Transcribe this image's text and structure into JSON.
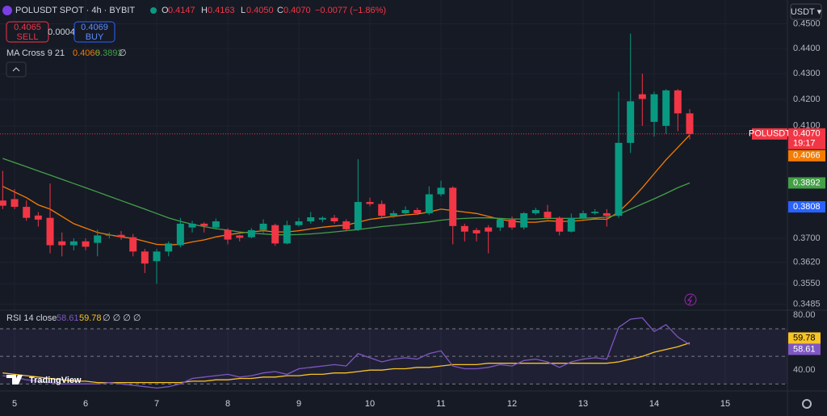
{
  "header": {
    "symbol": "POLUSDT SPOT · 4h · BYBIT",
    "o_label": "O",
    "o": "0.4147",
    "h_label": "H",
    "h": "0.4163",
    "l_label": "L",
    "l": "0.4050",
    "c_label": "C",
    "c": "0.4070",
    "change": "−0.0077 (−1.86%)"
  },
  "trade": {
    "sell_price": "0.4065",
    "sell": "SELL",
    "spread": "0.0004",
    "buy_price": "0.4069",
    "buy": "BUY"
  },
  "currency": "USDT ▾",
  "watermark": "TradingView",
  "chart_data": [
    {
      "type": "candlestick",
      "indicator": "MA Cross 9 21",
      "indicator_suffix": "∅",
      "log_scale": true,
      "grid": true,
      "up_color": "#089981",
      "down_color": "#f23645",
      "x": [
        4.833,
        5,
        5.167,
        5.333,
        5.5,
        5.667,
        5.833,
        6,
        6.167,
        6.333,
        6.5,
        6.667,
        6.833,
        7,
        7.167,
        7.333,
        7.5,
        7.667,
        7.833,
        8,
        8.167,
        8.333,
        8.5,
        8.667,
        8.833,
        9,
        9.167,
        9.333,
        9.5,
        9.667,
        9.833,
        10,
        10.167,
        10.333,
        10.5,
        10.667,
        10.833,
        11,
        11.167,
        11.333,
        11.5,
        11.667,
        11.833,
        12,
        12.167,
        12.333,
        12.5,
        12.667,
        12.833,
        13,
        13.167,
        13.333,
        13.5,
        13.667,
        13.833,
        14,
        14.167,
        14.333,
        14.5
      ],
      "open": [
        0.383,
        0.3835,
        0.3808,
        0.3778,
        0.377,
        0.369,
        0.3677,
        0.369,
        0.3685,
        0.371,
        0.3712,
        0.3704,
        0.3656,
        0.3624,
        0.3656,
        0.3677,
        0.3737,
        0.375,
        0.3737,
        0.3728,
        0.371,
        0.3704,
        0.3728,
        0.3745,
        0.3683,
        0.3745,
        0.3758,
        0.3764,
        0.377,
        0.3758,
        0.3731,
        0.3825,
        0.3818,
        0.3777,
        0.3786,
        0.3797,
        0.3786,
        0.3852,
        0.3875,
        0.3742,
        0.3728,
        0.3737,
        0.3737,
        0.3764,
        0.3737,
        0.3786,
        0.3791,
        0.377,
        0.3723,
        0.377,
        0.3786,
        0.3786,
        0.3777,
        0.4037,
        0.422,
        0.4115,
        0.41,
        0.4235,
        0.4147
      ],
      "high": [
        0.3935,
        0.387,
        0.383,
        0.379,
        0.389,
        0.372,
        0.37,
        0.37,
        0.373,
        0.372,
        0.3725,
        0.3715,
        0.3665,
        0.3665,
        0.369,
        0.377,
        0.376,
        0.3755,
        0.3768,
        0.3735,
        0.3712,
        0.3735,
        0.3765,
        0.375,
        0.376,
        0.377,
        0.379,
        0.3775,
        0.378,
        0.3765,
        0.3977,
        0.384,
        0.383,
        0.3795,
        0.381,
        0.3805,
        0.388,
        0.39,
        0.388,
        0.375,
        0.3735,
        0.3745,
        0.377,
        0.3775,
        0.379,
        0.3805,
        0.3815,
        0.3775,
        0.3785,
        0.3795,
        0.38,
        0.38,
        0.423,
        0.446,
        0.43,
        0.423,
        0.424,
        0.424,
        0.4163
      ],
      "low": [
        0.38,
        0.38,
        0.376,
        0.374,
        0.365,
        0.364,
        0.366,
        0.366,
        0.364,
        0.37,
        0.3695,
        0.364,
        0.3585,
        0.355,
        0.364,
        0.367,
        0.372,
        0.372,
        0.373,
        0.368,
        0.369,
        0.37,
        0.3718,
        0.3675,
        0.368,
        0.374,
        0.375,
        0.3755,
        0.375,
        0.3725,
        0.3725,
        0.381,
        0.377,
        0.377,
        0.378,
        0.378,
        0.378,
        0.3845,
        0.368,
        0.369,
        0.369,
        0.365,
        0.3725,
        0.373,
        0.373,
        0.378,
        0.3765,
        0.371,
        0.372,
        0.3765,
        0.378,
        0.374,
        0.377,
        0.4,
        0.41,
        0.406,
        0.407,
        0.408,
        0.405
      ],
      "close": [
        0.3812,
        0.3808,
        0.377,
        0.3764,
        0.3677,
        0.3677,
        0.369,
        0.3672,
        0.371,
        0.3712,
        0.3704,
        0.3656,
        0.3616,
        0.3656,
        0.3683,
        0.375,
        0.375,
        0.3742,
        0.3758,
        0.3696,
        0.3702,
        0.3728,
        0.375,
        0.3683,
        0.3745,
        0.3758,
        0.3772,
        0.377,
        0.3758,
        0.3731,
        0.3825,
        0.3818,
        0.3777,
        0.3786,
        0.3797,
        0.3786,
        0.3852,
        0.3875,
        0.3742,
        0.3723,
        0.3717,
        0.3723,
        0.3764,
        0.3737,
        0.3786,
        0.3797,
        0.377,
        0.3723,
        0.377,
        0.3786,
        0.3791,
        0.3777,
        0.4037,
        0.4193,
        0.4202,
        0.422,
        0.4235,
        0.4147,
        0.407
      ],
      "series": [
        {
          "color": "#f57c00",
          "values": [
            0.388,
            0.386,
            0.384,
            0.3815,
            0.38,
            0.3775,
            0.375,
            0.3735,
            0.372,
            0.3712,
            0.3705,
            0.37,
            0.369,
            0.368,
            0.3678,
            0.368,
            0.3688,
            0.3695,
            0.3705,
            0.3712,
            0.3718,
            0.3722,
            0.3726,
            0.3722,
            0.3722,
            0.3726,
            0.3732,
            0.3738,
            0.3742,
            0.3745,
            0.3755,
            0.3765,
            0.377,
            0.3775,
            0.378,
            0.3783,
            0.379,
            0.38,
            0.3795,
            0.379,
            0.3785,
            0.3775,
            0.3765,
            0.3758,
            0.3755,
            0.3755,
            0.376,
            0.3758,
            0.3758,
            0.3762,
            0.3766,
            0.3765,
            0.379,
            0.383,
            0.3875,
            0.3925,
            0.3975,
            0.402,
            0.4066
          ]
        },
        {
          "color": "#43a047",
          "values": [
            0.398,
            0.3965,
            0.395,
            0.3935,
            0.392,
            0.3905,
            0.389,
            0.3875,
            0.386,
            0.3845,
            0.383,
            0.3815,
            0.38,
            0.3785,
            0.377,
            0.3758,
            0.3748,
            0.374,
            0.3733,
            0.3728,
            0.3722,
            0.3718,
            0.3715,
            0.3712,
            0.3712,
            0.3713,
            0.3715,
            0.3718,
            0.3722,
            0.3726,
            0.373,
            0.3735,
            0.374,
            0.3744,
            0.3748,
            0.3752,
            0.3756,
            0.3762,
            0.3766,
            0.3768,
            0.377,
            0.377,
            0.3768,
            0.3766,
            0.3766,
            0.3766,
            0.3768,
            0.3768,
            0.3768,
            0.3769,
            0.377,
            0.3772,
            0.3782,
            0.38,
            0.3818,
            0.3836,
            0.3855,
            0.3875,
            0.3892
          ]
        }
      ],
      "last_price": {
        "value": 0.407,
        "label": "0.4070"
      },
      "symbol_tag": "POLUSDT",
      "countdown": "19:17",
      "marker_label": {
        "value": 0.3808,
        "label": "0.3808",
        "color": "#2962ff"
      },
      "xlim": [
        4.795,
        15.875
      ],
      "xticks": [
        5,
        6,
        7,
        8,
        9,
        10,
        11,
        12,
        13,
        14,
        15
      ],
      "ylim": [
        0.3468,
        0.4582
      ],
      "yticks": [
        {
          "value": 0.45,
          "label": "0.4500"
        },
        {
          "value": 0.44,
          "label": "0.4400"
        },
        {
          "value": 0.43,
          "label": "0.4300"
        },
        {
          "value": 0.42,
          "label": "0.4200"
        },
        {
          "value": 0.41,
          "label": "0.4100"
        },
        {
          "value": 0.37,
          "label": "0.3700"
        },
        {
          "value": 0.362,
          "label": "0.3620"
        },
        {
          "value": 0.355,
          "label": "0.3550"
        },
        {
          "value": 0.3485,
          "label": "0.3485"
        }
      ]
    },
    {
      "type": "line",
      "indicator": "RSI 14 close",
      "indicator_suffix": "∅ ∅ ∅ ∅",
      "x": [
        4.833,
        5,
        5.167,
        5.333,
        5.5,
        5.667,
        5.833,
        6,
        6.167,
        6.333,
        6.5,
        6.667,
        6.833,
        7,
        7.167,
        7.333,
        7.5,
        7.667,
        7.833,
        8,
        8.167,
        8.333,
        8.5,
        8.667,
        8.833,
        9,
        9.167,
        9.333,
        9.5,
        9.667,
        9.833,
        10,
        10.167,
        10.333,
        10.5,
        10.667,
        10.833,
        11,
        11.167,
        11.333,
        11.5,
        11.667,
        11.833,
        12,
        12.167,
        12.333,
        12.5,
        12.667,
        12.833,
        13,
        13.167,
        13.333,
        13.5,
        13.667,
        13.833,
        14,
        14.167,
        14.333,
        14.5
      ],
      "series": [
        {
          "color": "#7e57c2",
          "values": [
            36,
            35,
            33,
            32,
            31,
            30,
            30,
            30,
            30,
            31,
            30,
            29,
            28,
            27,
            28,
            30,
            34,
            35,
            36,
            37,
            35,
            36,
            38,
            39,
            37,
            41,
            42,
            43,
            44,
            43,
            52,
            49,
            46,
            48,
            49,
            48,
            52,
            54,
            43,
            41,
            41,
            42,
            44,
            43,
            47,
            48,
            46,
            42,
            46,
            48,
            49,
            48,
            71,
            77,
            78,
            68,
            73,
            64,
            58.61
          ]
        },
        {
          "color": "#f7c325",
          "values": [
            38,
            37,
            36,
            35,
            34,
            33,
            32,
            32,
            31,
            31,
            31,
            31,
            31,
            31,
            31,
            31,
            32,
            32,
            33,
            33,
            34,
            34,
            35,
            35,
            36,
            36,
            37,
            37,
            38,
            38,
            39,
            40,
            40,
            41,
            41,
            42,
            42,
            43,
            44,
            44,
            44,
            45,
            45,
            45,
            45,
            45,
            45,
            45,
            45,
            45,
            45,
            45,
            46,
            48,
            50,
            53,
            55,
            57,
            59.78
          ]
        }
      ],
      "levels": [
        70,
        50,
        30
      ],
      "xlim": [
        4.795,
        15.875
      ],
      "ylim": [
        25.5,
        82.9
      ],
      "yticks": [
        {
          "value": 80,
          "label": "80.00"
        },
        {
          "value": 40,
          "label": "40.00"
        }
      ]
    }
  ]
}
